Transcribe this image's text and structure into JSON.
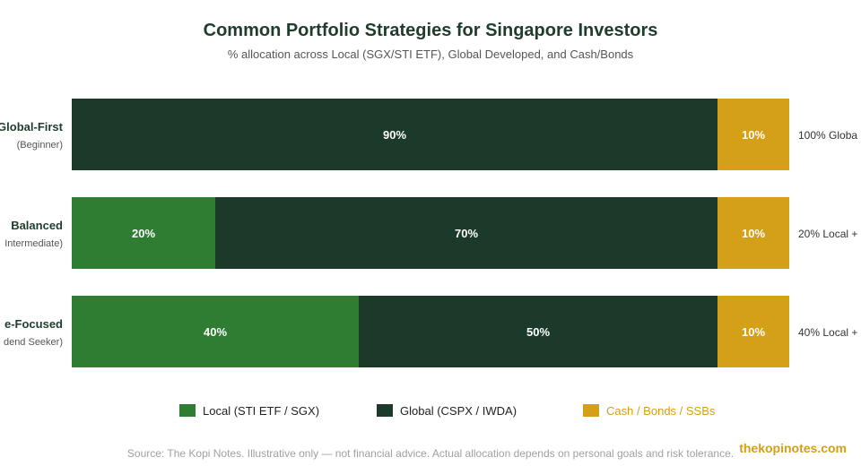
{
  "chart_data": {
    "type": "bar",
    "orientation": "horizontal",
    "stacked": true,
    "title": "Common Portfolio Strategies for Singapore Investors",
    "subtitle": "% allocation across Local (SGX/STI ETF), Global Developed, and Cash/Bonds",
    "categories": [
      {
        "name": "Global-First",
        "sub": "(Beginner)",
        "note": "100% Globa"
      },
      {
        "name": "Balanced",
        "sub": "Intermediate)",
        "note": "20% Local +"
      },
      {
        "name": "e-Focused",
        "sub": "dend Seeker)",
        "note": "40% Local +"
      }
    ],
    "series": [
      {
        "name": "Local (STI ETF / SGX)",
        "color": "#2e7d32",
        "values": [
          0,
          20,
          40
        ]
      },
      {
        "name": "Global (CSPX / IWDA)",
        "color": "#1b3a2a",
        "values": [
          90,
          70,
          50
        ]
      },
      {
        "name": "Cash / Bonds / SSBs",
        "color": "#d4a017",
        "values": [
          10,
          10,
          10
        ]
      }
    ],
    "xlim": [
      0,
      100
    ],
    "grid": false,
    "legend_position": "bottom"
  },
  "footer": {
    "source": "Source: The Kopi Notes. Illustrative only — not financial advice. Actual allocation depends on personal goals and risk tolerance.",
    "brand": "thekopinotes.com"
  }
}
